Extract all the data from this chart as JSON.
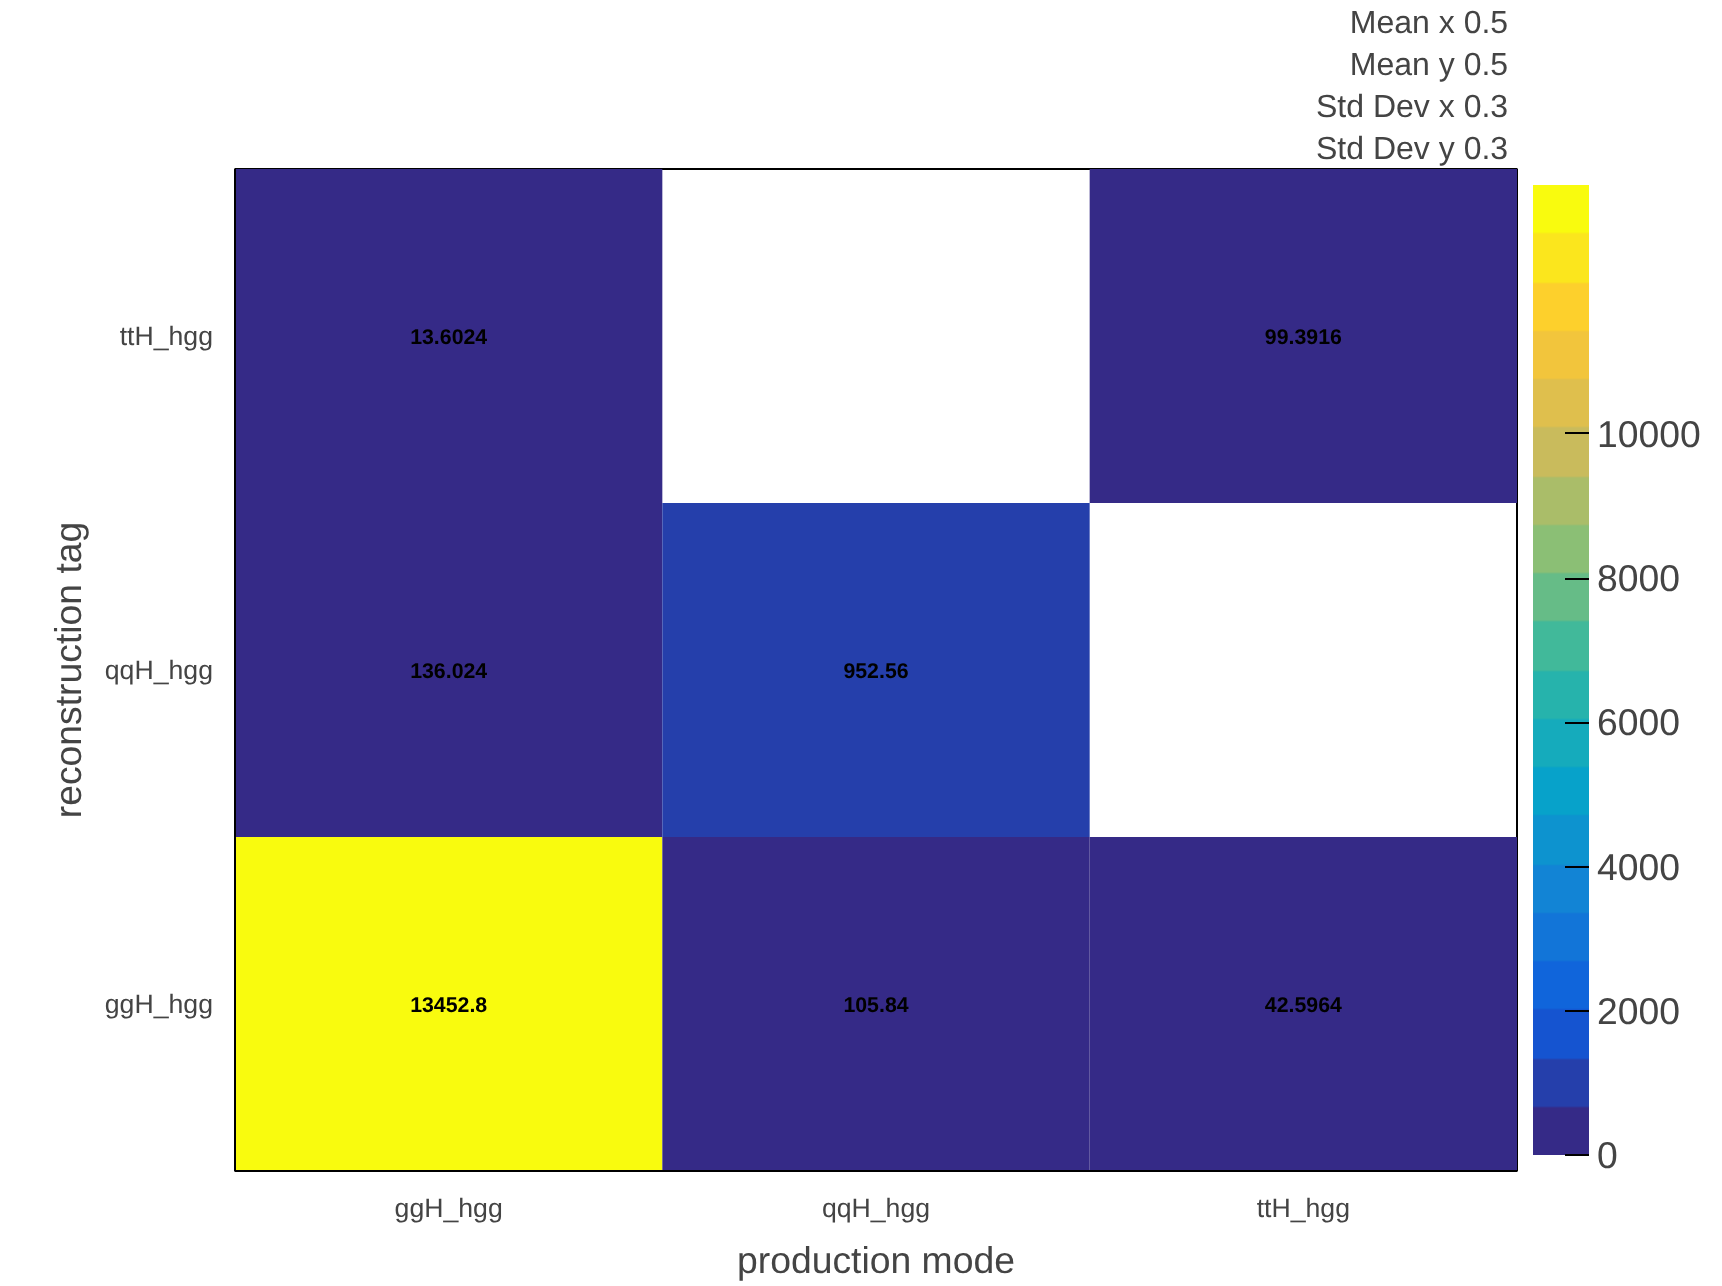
{
  "chart_data": {
    "type": "heatmap",
    "xlabel": "production mode",
    "ylabel": "reconstruction tag",
    "categories": [
      "ggH_hgg",
      "qqH_hgg",
      "ttH_hgg"
    ],
    "y_categories": [
      "ttH_hgg",
      "qqH_hgg",
      "ggH_hgg"
    ],
    "cells": [
      [
        13.6024,
        null,
        99.3916
      ],
      [
        136.024,
        952.56,
        null
      ],
      [
        13452.8,
        105.84,
        42.5964
      ]
    ],
    "data_labels": true,
    "clim": [
      0,
      13452.8
    ],
    "cticks": [
      0,
      2000,
      4000,
      6000,
      8000,
      10000
    ],
    "annotations": [
      "Mean x  0.5",
      "Mean y  0.5",
      "Std Dev x  0.3",
      "Std Dev y  0.3"
    ]
  }
}
